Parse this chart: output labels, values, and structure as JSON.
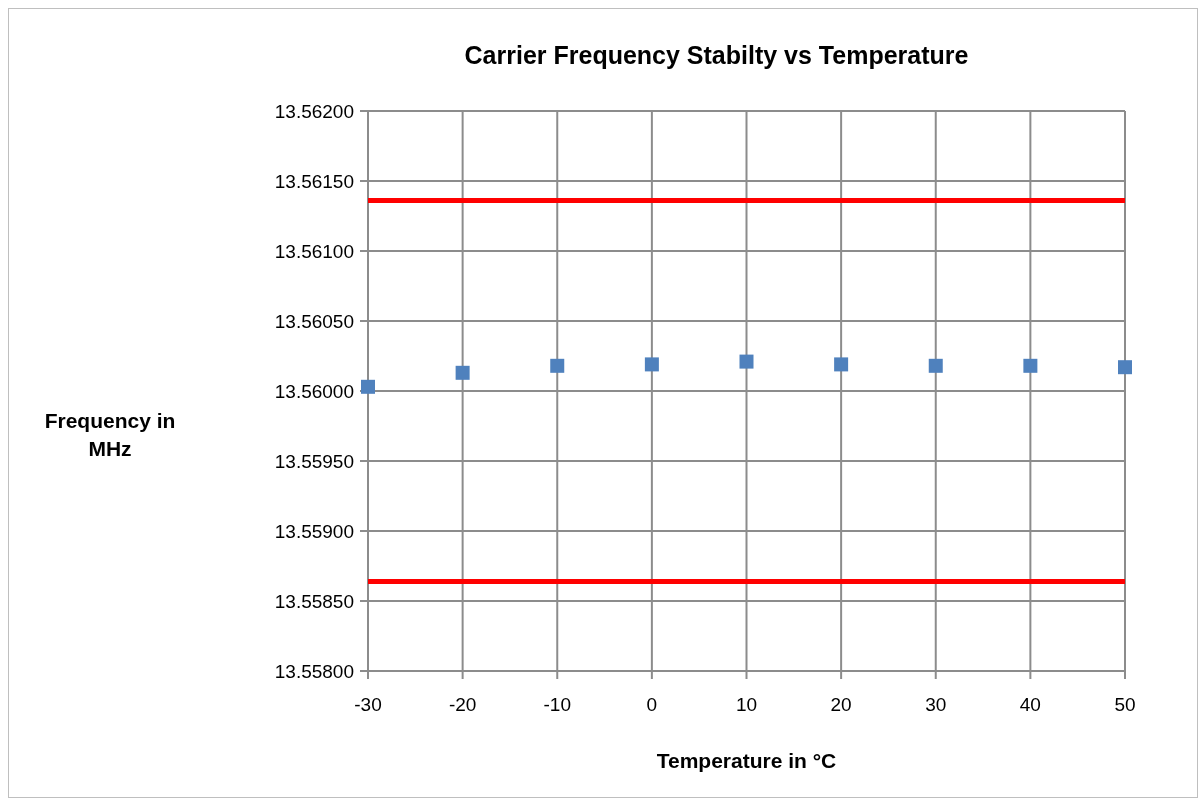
{
  "chart_data": {
    "type": "scatter",
    "title": "Carrier Frequency Stabilty vs Temperature",
    "xlabel": "Temperature in °C",
    "ylabel": "Frequency in MHz",
    "x": [
      -30,
      -20,
      -10,
      0,
      10,
      20,
      30,
      40,
      50
    ],
    "series": [
      {
        "color": "#4f81bd",
        "values": [
          13.56003,
          13.56013,
          13.56018,
          13.56019,
          13.56021,
          13.56019,
          13.56018,
          13.56018,
          13.56017
        ]
      }
    ],
    "marker": "square",
    "grid": true,
    "xlim": [
      -30,
      50
    ],
    "xticks": [
      -30,
      -20,
      -10,
      0,
      10,
      20,
      30,
      40,
      50
    ],
    "ylim": [
      13.558,
      13.562
    ],
    "yticks": [
      {
        "value": 13.558,
        "label": "13.55800"
      },
      {
        "value": 13.5585,
        "label": "13.55850"
      },
      {
        "value": 13.559,
        "label": "13.55900"
      },
      {
        "value": 13.5595,
        "label": "13.55950"
      },
      {
        "value": 13.56,
        "label": "13.56000"
      },
      {
        "value": 13.5605,
        "label": "13.56050"
      },
      {
        "value": 13.561,
        "label": "13.56100"
      },
      {
        "value": 13.5615,
        "label": "13.56150"
      },
      {
        "value": 13.562,
        "label": "13.56200"
      }
    ],
    "ref_lines": [
      {
        "axis": "y",
        "value": 13.56136,
        "color": "#ff0000"
      },
      {
        "axis": "y",
        "value": 13.55864,
        "color": "#ff0000"
      }
    ]
  }
}
